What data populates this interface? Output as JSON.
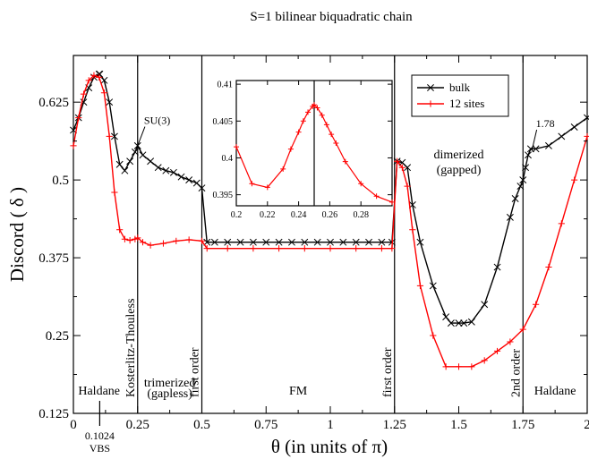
{
  "chart_data": [
    {
      "type": "line",
      "title": "S=1 bilinear biquadratic chain",
      "xlabel": "θ (in units of  π)",
      "ylabel": "Discord ( δ )",
      "xlim": [
        0,
        2
      ],
      "ylim": [
        0.125,
        0.7
      ],
      "x_ticks": [
        "0",
        "0.25",
        "0.5",
        "0.75",
        "1",
        "1.25",
        "1.5",
        "1.75",
        "2"
      ],
      "y_ticks": [
        "0.125",
        "0.25",
        "0.375",
        "0.5",
        "0.625"
      ],
      "grid": false,
      "legend_position": "top-right-inside",
      "colors": {
        "bulk": "#000000",
        "sites12": "#ff0000",
        "frame": "#000000"
      },
      "boundaries_x": [
        0.25,
        0.5,
        1.25,
        1.75
      ],
      "boundary_labels": [
        "Kosterlitz-Thouless",
        "first order",
        "first order",
        "2nd order"
      ],
      "region_labels": [
        {
          "text": "Haldane",
          "x": 0.1,
          "y": 0.155
        },
        {
          "text": "trimerized",
          "x": 0.375,
          "y": 0.168
        },
        {
          "text": "(gapless)",
          "x": 0.375,
          "y": 0.151
        },
        {
          "text": "FM",
          "x": 0.875,
          "y": 0.155
        },
        {
          "text": "dimerized",
          "x": 1.5,
          "y": 0.535
        },
        {
          "text": "(gapped)",
          "x": 1.5,
          "y": 0.51
        },
        {
          "text": "Haldane",
          "x": 1.875,
          "y": 0.155
        }
      ],
      "annotations": [
        {
          "text": "SU(3)",
          "x": 0.275,
          "y": 0.59,
          "arrow_to": [
            0.25,
            0.555
          ]
        },
        {
          "text": "1.78",
          "x": 1.8,
          "y": 0.585,
          "arrow_to": [
            1.785,
            0.548
          ]
        }
      ],
      "marker_label_top": "0.1024",
      "marker_label_bottom": "VBS",
      "marker_x": 0.1024,
      "series": [
        {
          "name": "bulk",
          "color": "#000000",
          "marker": "x",
          "x": [
            0,
            0.02,
            0.04,
            0.06,
            0.08,
            0.1,
            0.1024,
            0.12,
            0.14,
            0.16,
            0.18,
            0.2,
            0.22,
            0.24,
            0.25,
            0.27,
            0.3,
            0.33,
            0.36,
            0.39,
            0.42,
            0.45,
            0.48,
            0.5,
            0.52,
            0.55,
            0.6,
            0.65,
            0.7,
            0.75,
            0.8,
            0.85,
            0.9,
            0.95,
            1.0,
            1.05,
            1.1,
            1.15,
            1.2,
            1.24,
            1.26,
            1.28,
            1.3,
            1.32,
            1.35,
            1.4,
            1.45,
            1.47,
            1.5,
            1.52,
            1.55,
            1.6,
            1.65,
            1.7,
            1.72,
            1.74,
            1.75,
            1.76,
            1.77,
            1.78,
            1.8,
            1.85,
            1.9,
            1.95,
            2.0
          ],
          "y": [
            0.58,
            0.6,
            0.625,
            0.648,
            0.665,
            0.67,
            0.67,
            0.66,
            0.625,
            0.57,
            0.525,
            0.515,
            0.53,
            0.545,
            0.555,
            0.54,
            0.53,
            0.52,
            0.515,
            0.512,
            0.505,
            0.5,
            0.495,
            0.487,
            0.4,
            0.4,
            0.4,
            0.4,
            0.4,
            0.4,
            0.4,
            0.4,
            0.4,
            0.4,
            0.4,
            0.4,
            0.4,
            0.4,
            0.4,
            0.4,
            0.53,
            0.528,
            0.52,
            0.46,
            0.4,
            0.33,
            0.28,
            0.27,
            0.27,
            0.27,
            0.272,
            0.3,
            0.36,
            0.44,
            0.47,
            0.49,
            0.5,
            0.52,
            0.54,
            0.55,
            0.55,
            0.555,
            0.57,
            0.585,
            0.6
          ]
        },
        {
          "name": "12 sites",
          "color": "#ff0000",
          "marker": "+",
          "x": [
            0,
            0.02,
            0.04,
            0.06,
            0.08,
            0.1,
            0.12,
            0.14,
            0.16,
            0.18,
            0.2,
            0.22,
            0.24,
            0.25,
            0.27,
            0.3,
            0.35,
            0.4,
            0.45,
            0.5,
            0.52,
            0.6,
            0.7,
            0.8,
            0.9,
            1.0,
            1.1,
            1.2,
            1.24,
            1.26,
            1.28,
            1.3,
            1.32,
            1.35,
            1.4,
            1.45,
            1.5,
            1.55,
            1.6,
            1.65,
            1.7,
            1.75,
            1.8,
            1.85,
            1.9,
            1.95,
            2.0
          ],
          "y": [
            0.555,
            0.6,
            0.638,
            0.66,
            0.668,
            0.665,
            0.64,
            0.57,
            0.48,
            0.42,
            0.405,
            0.403,
            0.405,
            0.407,
            0.4,
            0.395,
            0.398,
            0.402,
            0.404,
            0.402,
            0.39,
            0.39,
            0.39,
            0.39,
            0.39,
            0.39,
            0.39,
            0.39,
            0.39,
            0.53,
            0.52,
            0.49,
            0.42,
            0.33,
            0.25,
            0.2,
            0.2,
            0.2,
            0.21,
            0.225,
            0.24,
            0.26,
            0.3,
            0.36,
            0.43,
            0.5,
            0.57
          ]
        }
      ]
    },
    {
      "type": "line",
      "title": "",
      "xlabel": "",
      "ylabel": "",
      "xlim": [
        0.2,
        0.3
      ],
      "ylim": [
        0.3935,
        0.4105
      ],
      "x_ticks": [
        "0.2",
        "0.22",
        "0.24",
        "0.26",
        "0.28"
      ],
      "y_ticks": [
        "0.395",
        "0.4",
        "0.405",
        "0.41"
      ],
      "vline_x": 0.25,
      "series": [
        {
          "name": "12 sites",
          "color": "#ff0000",
          "marker": "+",
          "x": [
            0.2,
            0.21,
            0.22,
            0.23,
            0.235,
            0.24,
            0.243,
            0.246,
            0.249,
            0.25,
            0.252,
            0.255,
            0.258,
            0.261,
            0.264,
            0.27,
            0.28,
            0.29,
            0.3
          ],
          "y": [
            0.4015,
            0.3965,
            0.396,
            0.3985,
            0.4012,
            0.4035,
            0.405,
            0.4062,
            0.407,
            0.4072,
            0.4068,
            0.4058,
            0.4045,
            0.4032,
            0.402,
            0.3995,
            0.3965,
            0.3948,
            0.394
          ]
        }
      ]
    }
  ]
}
